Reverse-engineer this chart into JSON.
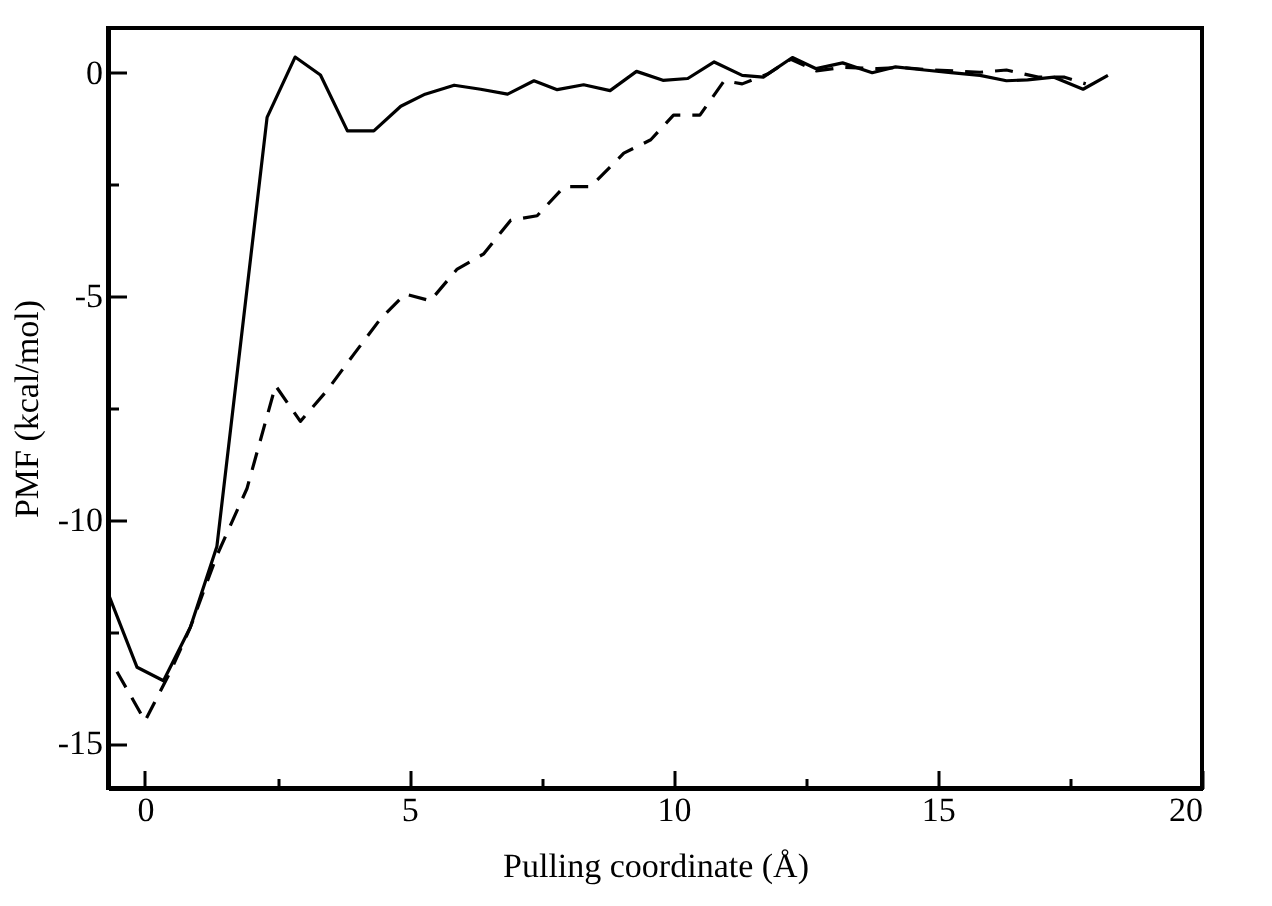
{
  "chart_data": {
    "type": "line",
    "xlabel": "Pulling coordinate (Å)",
    "ylabel": "PMF (kcal/mol)",
    "xlim": [
      -0.7,
      20
    ],
    "ylim": [
      -16,
      1
    ],
    "xticks": [
      0,
      {
        "value": 2.5,
        "label": null
      },
      5,
      {
        "value": 7.5,
        "label": null
      },
      10,
      {
        "value": 12.5,
        "label": null
      },
      15,
      {
        "value": 17.5,
        "label": null
      },
      20
    ],
    "yticks": [
      -15,
      {
        "value": -12.5,
        "label": null
      },
      -10,
      {
        "value": -7.5,
        "label": null
      },
      -5,
      {
        "value": -2.5,
        "label": null
      },
      0
    ],
    "grid": false,
    "marker": "none",
    "series": [
      {
        "color": "#000000",
        "line_style": "solid",
        "x": [
          -0.68,
          -0.15,
          0.35,
          0.86,
          1.36,
          2.31,
          2.84,
          3.32,
          3.83,
          4.33,
          4.84,
          5.3,
          5.85,
          6.35,
          6.86,
          7.36,
          7.8,
          8.3,
          8.8,
          9.3,
          9.8,
          10.27,
          10.77,
          11.3,
          11.7,
          12.25,
          12.7,
          13.2,
          13.76,
          14.2,
          14.75,
          15.25,
          15.8,
          16.3,
          16.7,
          17.2,
          17.75,
          18.22
        ],
        "values": [
          -11.7,
          -13.3,
          -13.6,
          -12.4,
          -10.6,
          -1.0,
          0.35,
          -0.05,
          -1.3,
          -1.3,
          -0.75,
          -0.48,
          -0.28,
          -0.37,
          -0.48,
          -0.18,
          -0.38,
          -0.27,
          -0.4,
          0.03,
          -0.17,
          -0.13,
          0.24,
          -0.06,
          -0.1,
          0.34,
          0.09,
          0.22,
          0.0,
          0.13,
          0.06,
          0.0,
          -0.06,
          -0.18,
          -0.16,
          -0.1,
          -0.37,
          -0.06
        ]
      },
      {
        "color": "#000000",
        "line_style": "dashed",
        "x": [
          -0.53,
          0.0,
          0.48,
          0.86,
          1.36,
          1.93,
          2.47,
          2.94,
          3.45,
          3.95,
          4.46,
          4.92,
          5.4,
          5.9,
          6.41,
          6.92,
          7.42,
          7.93,
          8.43,
          9.06,
          9.57,
          10.0,
          10.5,
          10.96,
          11.3,
          11.78,
          12.22,
          12.7,
          13.2,
          13.86,
          14.3,
          14.8,
          15.3,
          15.8,
          16.3,
          16.9,
          17.4,
          17.8
        ],
        "values": [
          -13.4,
          -14.5,
          -13.4,
          -12.4,
          -10.8,
          -9.3,
          -7.0,
          -7.8,
          -7.1,
          -6.3,
          -5.5,
          -4.95,
          -5.1,
          -4.4,
          -4.05,
          -3.3,
          -3.2,
          -2.55,
          -2.55,
          -1.8,
          -1.5,
          -0.95,
          -0.95,
          -0.18,
          -0.25,
          -0.03,
          0.3,
          0.04,
          0.12,
          0.09,
          0.12,
          0.07,
          0.04,
          0.01,
          0.06,
          -0.1,
          -0.1,
          -0.25
        ]
      }
    ]
  }
}
